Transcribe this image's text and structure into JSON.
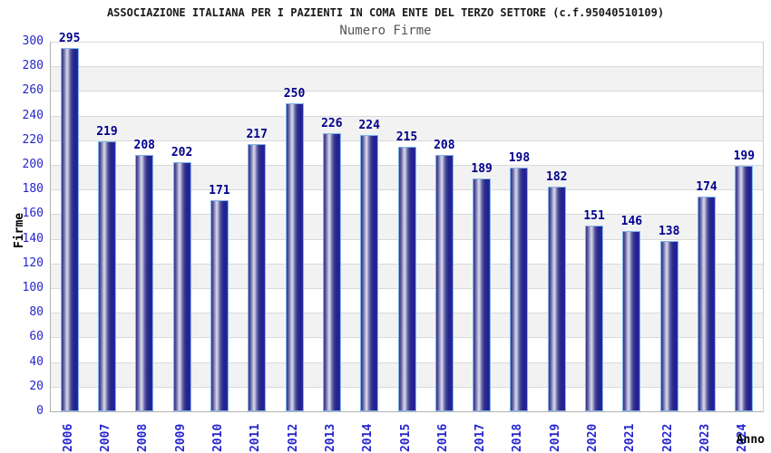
{
  "header": {
    "title": "ASSOCIAZIONE ITALIANA PER I PAZIENTI IN COMA ENTE DEL TERZO SETTORE (c.f.95040510109)",
    "subtitle": "Numero Firme"
  },
  "chart_data": {
    "type": "bar",
    "title": "Numero Firme",
    "suptitle": "ASSOCIAZIONE ITALIANA PER I PAZIENTI IN COMA ENTE DEL TERZO SETTORE (c.f.95040510109)",
    "categories": [
      "2006",
      "2007",
      "2008",
      "2009",
      "2010",
      "2011",
      "2012",
      "2013",
      "2014",
      "2015",
      "2016",
      "2017",
      "2018",
      "2019",
      "2020",
      "2021",
      "2022",
      "2023",
      "2024"
    ],
    "values": [
      295,
      219,
      208,
      202,
      171,
      217,
      250,
      226,
      224,
      215,
      208,
      189,
      198,
      182,
      151,
      146,
      138,
      174,
      199
    ],
    "xlabel": "Anno",
    "ylabel": "Firme",
    "ylim": [
      0,
      300
    ],
    "ytick_step": 20,
    "grid": true,
    "band_alternating": true,
    "legend": "none",
    "colors": {
      "bar_dark": "#26268a",
      "bar_highlight": "#d9d9ec",
      "bar_border": "#82b4e8",
      "tick_label": "#2626cf",
      "value_label": "#00008b",
      "title": "#1a1a1a",
      "subtitle": "#555555",
      "band_gray": "#f2f2f2",
      "gridline": "#d9d9d9"
    }
  }
}
